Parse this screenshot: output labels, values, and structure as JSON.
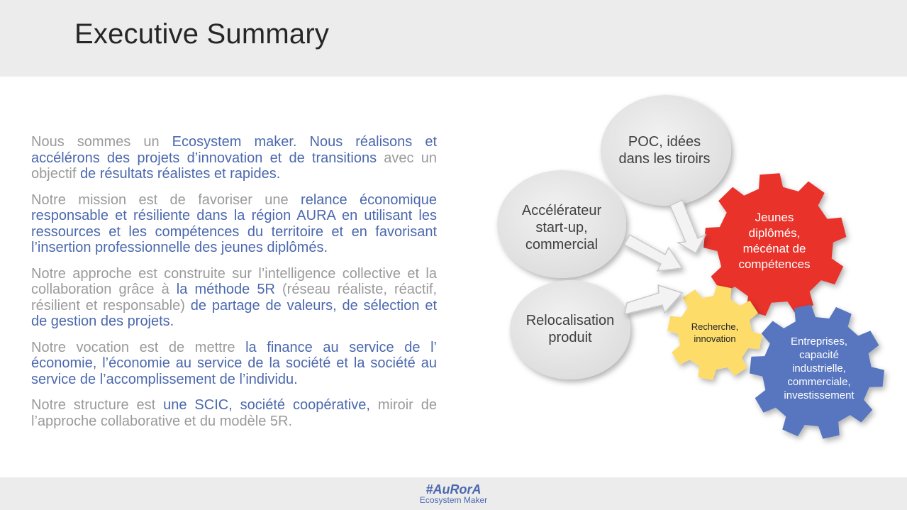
{
  "header": {
    "title": "Executive Summary"
  },
  "paragraphs": [
    [
      {
        "t": "Nous sommes un ",
        "h": false
      },
      {
        "t": "Ecosystem maker. Nous réalisons et accélérons des projets d’innovation et de transitions",
        "h": true
      },
      {
        "t": " avec un objectif ",
        "h": false
      },
      {
        "t": "de résultats réalistes et rapides.",
        "h": true
      }
    ],
    [
      {
        "t": "Notre mission est de favoriser une ",
        "h": false
      },
      {
        "t": "relance économique responsable et résiliente dans la région AURA en utilisant les ressources et les compétences du territoire et en favorisant l’insertion professionnelle des jeunes diplômés.",
        "h": true
      }
    ],
    [
      {
        "t": "Notre approche est construite sur l’intelligence collective et la collaboration grâce à ",
        "h": false
      },
      {
        "t": "la méthode 5R",
        "h": true
      },
      {
        "t": " (réseau réaliste, réactif, résilient et responsable) ",
        "h": false
      },
      {
        "t": "de partage de valeurs, de sélection et de gestion des projets.",
        "h": true
      }
    ],
    [
      {
        "t": "Notre vocation est de mettre ",
        "h": false
      },
      {
        "t": "la finance au service de l’ économie, l’économie au service de la société et la société au service de l’accomplissement de l’individu.",
        "h": true
      }
    ],
    [
      {
        "t": "Notre structure est ",
        "h": false
      },
      {
        "t": "une SCIC, société coopérative,",
        "h": true
      },
      {
        "t": " miroir de l’approche collaborative et du modèle 5R.",
        "h": false
      }
    ]
  ],
  "diagram": {
    "bubbles": {
      "poc": [
        "POC, idées",
        "dans les tiroirs"
      ],
      "accelerateur": [
        "Accélérateur",
        "start-up,",
        "commercial"
      ],
      "relocalisation": [
        "Relocalisation",
        "produit"
      ]
    },
    "gears": {
      "jeunes": [
        "Jeunes",
        "diplômés,",
        "mécénat de",
        "compétences"
      ],
      "recherche": [
        "Recherche,",
        "innovation"
      ],
      "entreprises": [
        "Entreprises,",
        "capacité",
        "industrielle,",
        "commerciale,",
        "investissement"
      ]
    },
    "colors": {
      "bubble": "#e6e6e6",
      "gear_red": "#e8312a",
      "gear_yellow": "#fddc6a",
      "gear_blue": "#5876bf",
      "accent": "#4b68ae"
    }
  },
  "footer": {
    "tag": "#AuRorA",
    "sub": "Ecosystem Maker"
  }
}
